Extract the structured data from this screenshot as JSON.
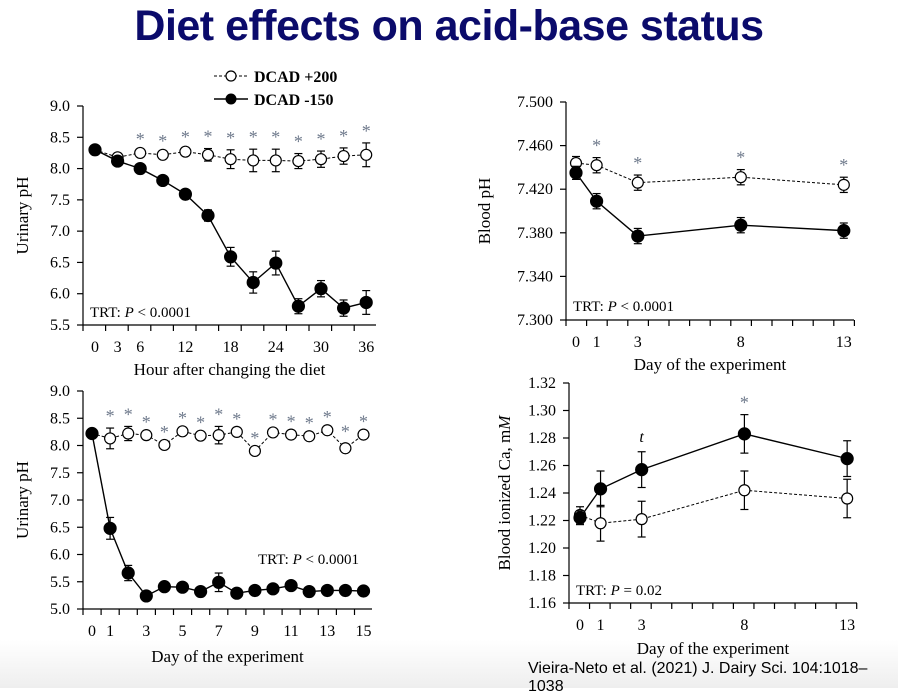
{
  "title": "Diet effects on acid-base status",
  "citation": "Vieira-Neto et al. (2021) J. Dairy Sci. 104:1018–1038",
  "colors": {
    "title": "#0b0b6b",
    "significance_marker": "#6f7a8c"
  },
  "legend": [
    {
      "label": "DCAD +200",
      "marker": "open-circle",
      "line": "dashed"
    },
    {
      "label": "DCAD -150",
      "marker": "filled-circle",
      "line": "solid"
    }
  ],
  "chart_data": [
    {
      "id": "urine-hourly",
      "type": "line",
      "title": "",
      "xlabel": "Hour after changing the diet",
      "ylabel": "Urinary pH",
      "x": [
        0,
        3,
        6,
        9,
        12,
        15,
        18,
        21,
        24,
        27,
        30,
        33,
        36
      ],
      "xticklabels": [
        "0",
        "3",
        "6",
        "12",
        "18",
        "24",
        "30",
        "36"
      ],
      "xtick_values": [
        0,
        3,
        6,
        12,
        18,
        24,
        30,
        36
      ],
      "ylim": [
        5.5,
        9.0
      ],
      "yticks": [
        5.5,
        6.0,
        6.5,
        7.0,
        7.5,
        8.0,
        8.5,
        9.0
      ],
      "ytick_decimals": 1,
      "annotation": {
        "prefix": "TRT: ",
        "p": "P",
        "rest": " < 0.0001",
        "position": "bottom-left"
      },
      "series": [
        {
          "name": "DCAD +200",
          "values": [
            8.3,
            8.18,
            8.25,
            8.22,
            8.27,
            8.22,
            8.15,
            8.13,
            8.13,
            8.12,
            8.15,
            8.2,
            8.22
          ],
          "errors": [
            0.02,
            0.02,
            0.03,
            0.03,
            0.04,
            0.1,
            0.15,
            0.18,
            0.18,
            0.12,
            0.13,
            0.13,
            0.19
          ]
        },
        {
          "name": "DCAD -150",
          "values": [
            8.3,
            8.12,
            8.0,
            7.81,
            7.59,
            7.25,
            6.59,
            6.18,
            6.49,
            5.8,
            6.08,
            5.77,
            5.86
          ],
          "errors": [
            0.02,
            0.02,
            0.02,
            0.03,
            0.04,
            0.09,
            0.15,
            0.17,
            0.19,
            0.12,
            0.13,
            0.13,
            0.19
          ]
        }
      ],
      "significant_x": [
        6,
        9,
        12,
        15,
        18,
        21,
        24,
        27,
        30,
        33,
        36
      ],
      "sig_label": "*"
    },
    {
      "id": "blood-ph",
      "type": "line",
      "title": "",
      "xlabel": "Day of the experiment",
      "ylabel": "Blood  pH",
      "x": [
        0,
        1,
        3,
        8,
        13
      ],
      "xticklabels": [
        "0",
        "1",
        "3",
        "8",
        "13"
      ],
      "xtick_values": [
        0,
        1,
        3,
        8,
        13
      ],
      "ylim": [
        7.3,
        7.5
      ],
      "yticks": [
        7.3,
        7.34,
        7.38,
        7.42,
        7.46,
        7.5
      ],
      "ytick_decimals": 3,
      "annotation": {
        "prefix": "TRT: ",
        "p": "P",
        "rest": " < 0.0001",
        "position": "bottom-left"
      },
      "series": [
        {
          "name": "DCAD +200",
          "values": [
            7.444,
            7.442,
            7.426,
            7.431,
            7.424
          ],
          "errors": [
            0.006,
            0.007,
            0.007,
            0.007,
            0.007
          ]
        },
        {
          "name": "DCAD -150",
          "values": [
            7.435,
            7.409,
            7.377,
            7.387,
            7.382
          ],
          "errors": [
            0.006,
            0.007,
            0.007,
            0.007,
            0.007
          ]
        }
      ],
      "significant_x": [
        1,
        3,
        8,
        13
      ],
      "sig_label": "*"
    },
    {
      "id": "urine-daily",
      "type": "line",
      "title": "",
      "xlabel": "Day of the experiment",
      "ylabel": "Urinary pH",
      "x": [
        0,
        1,
        2,
        3,
        4,
        5,
        6,
        7,
        8,
        9,
        10,
        11,
        12,
        13,
        14,
        15
      ],
      "xticklabels": [
        "0",
        "1",
        "3",
        "5",
        "7",
        "9",
        "11",
        "13",
        "15"
      ],
      "xtick_values": [
        0,
        1,
        3,
        5,
        7,
        9,
        11,
        13,
        15
      ],
      "ylim": [
        5.0,
        9.0
      ],
      "yticks": [
        5.0,
        5.5,
        6.0,
        6.5,
        7.0,
        7.5,
        8.0,
        8.5,
        9.0
      ],
      "ytick_decimals": 1,
      "annotation": {
        "prefix": "TRT: ",
        "p": "P",
        "rest": " < 0.0001",
        "position": "middle-right"
      },
      "series": [
        {
          "name": "DCAD +200",
          "values": [
            8.22,
            8.13,
            8.22,
            8.19,
            8.01,
            8.26,
            8.18,
            8.19,
            8.25,
            7.9,
            8.24,
            8.2,
            8.17,
            8.28,
            7.95,
            8.2
          ],
          "errors": [
            0.02,
            0.19,
            0.13,
            0.02,
            0.02,
            0.02,
            0.02,
            0.16,
            0.02,
            0.02,
            0.02,
            0.02,
            0.02,
            0.02,
            0.09,
            0.02
          ]
        },
        {
          "name": "DCAD -150",
          "values": [
            8.22,
            6.48,
            5.66,
            5.24,
            5.41,
            5.4,
            5.32,
            5.49,
            5.29,
            5.34,
            5.37,
            5.43,
            5.32,
            5.34,
            5.34,
            5.33
          ],
          "errors": [
            0.02,
            0.2,
            0.14,
            0.02,
            0.02,
            0.02,
            0.05,
            0.17,
            0.02,
            0.02,
            0.02,
            0.02,
            0.02,
            0.02,
            0.09,
            0.02
          ]
        }
      ],
      "significant_x": [
        1,
        2,
        3,
        4,
        5,
        6,
        7,
        8,
        9,
        10,
        11,
        12,
        13,
        14,
        15
      ],
      "sig_label": "*"
    },
    {
      "id": "blood-ica",
      "type": "line",
      "title": "",
      "xlabel": "Day of the experiment",
      "ylabel": "Blood  ionized Ca, mM",
      "ylabel_main": "Blood  ionized Ca, m",
      "ylabel_italic": "M",
      "x": [
        0,
        1,
        3,
        8,
        13
      ],
      "xticklabels": [
        "0",
        "1",
        "3",
        "8",
        "13"
      ],
      "xtick_values": [
        0,
        1,
        3,
        8,
        13
      ],
      "ylim": [
        1.16,
        1.32
      ],
      "yticks": [
        1.16,
        1.18,
        1.2,
        1.22,
        1.24,
        1.26,
        1.28,
        1.3,
        1.32
      ],
      "ytick_decimals": 2,
      "annotation": {
        "prefix": "TRT: ",
        "p": "P",
        "rest": " = 0.02",
        "position": "bottom-left"
      },
      "series": [
        {
          "name": "DCAD +200",
          "values": [
            1.224,
            1.218,
            1.221,
            1.242,
            1.236
          ],
          "errors": [
            0.006,
            0.013,
            0.013,
            0.014,
            0.014
          ]
        },
        {
          "name": "DCAD -150",
          "values": [
            1.222,
            1.243,
            1.257,
            1.283,
            1.265
          ],
          "errors": [
            0.005,
            0.013,
            0.013,
            0.014,
            0.013
          ]
        }
      ],
      "significant_x": [
        8
      ],
      "sig_label": "*",
      "trend_x": [
        3
      ],
      "trend_label": "t"
    }
  ]
}
